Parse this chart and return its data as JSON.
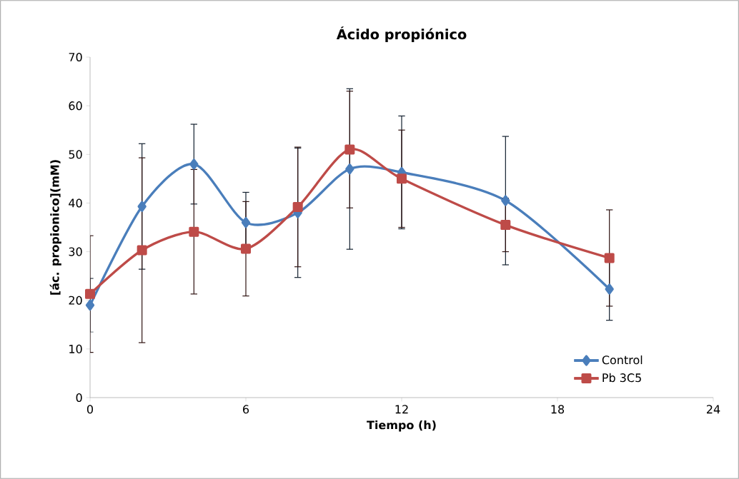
{
  "chart_data": {
    "type": "line",
    "title": "Ácido propiónico",
    "xlabel": "Tiempo (h)",
    "ylabel": "[ác. propionico](mM)",
    "xlim": [
      0,
      24
    ],
    "xticks": [
      0,
      6,
      12,
      18,
      24
    ],
    "ylim": [
      0,
      70
    ],
    "yticks": [
      0,
      10,
      20,
      30,
      40,
      50,
      60,
      70
    ],
    "grid": false,
    "legend": "bottom right",
    "series": [
      {
        "name": "Control",
        "color": "#4a7ebb",
        "marker": "diamond",
        "x": [
          0,
          2,
          4,
          6,
          8,
          10,
          12,
          16,
          20
        ],
        "values": [
          19,
          39.3,
          48,
          36,
          38,
          47,
          46.3,
          40.5,
          22.3
        ],
        "errors": [
          5.5,
          12.9,
          8.2,
          6.2,
          13.3,
          16.5,
          11.6,
          13.2,
          6.4
        ]
      },
      {
        "name": "Pb 3C5",
        "color": "#be4b48",
        "marker": "square",
        "x": [
          0,
          2,
          4,
          6,
          8,
          10,
          12,
          16,
          20
        ],
        "values": [
          21.3,
          30.3,
          34.1,
          30.6,
          39.2,
          51,
          45,
          35.5,
          28.7
        ],
        "errors": [
          12,
          19,
          12.8,
          9.7,
          12.3,
          12,
          10,
          5.5,
          9.9
        ]
      }
    ]
  }
}
